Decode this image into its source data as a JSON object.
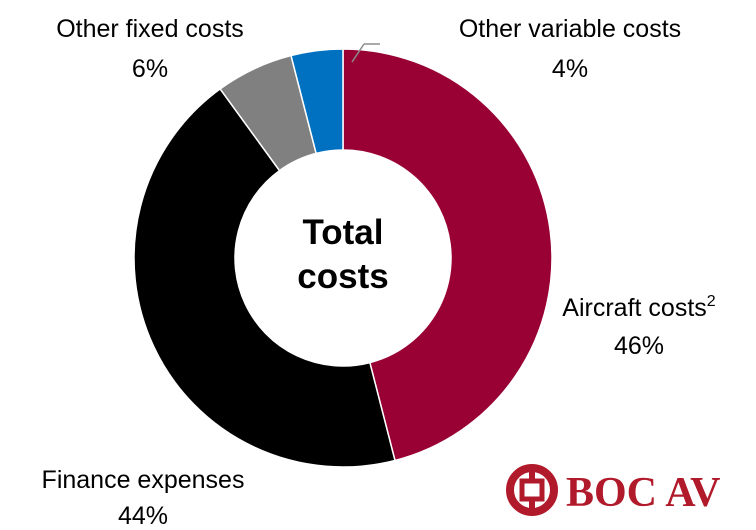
{
  "chart_data": {
    "type": "pie",
    "variant": "donut",
    "center_label": [
      "Total",
      "costs"
    ],
    "slices": [
      {
        "name": "Aircraft costs",
        "superscript": "2",
        "value": 46,
        "label": "46%",
        "color": "#990033"
      },
      {
        "name": "Finance expenses",
        "value": 44,
        "label": "44%",
        "color": "#000000"
      },
      {
        "name": "Other fixed costs",
        "value": 6,
        "label": "6%",
        "color": "#808080"
      },
      {
        "name": "Other variable costs",
        "value": 4,
        "label": "4%",
        "color": "#0070c0"
      }
    ],
    "start": "12 o'clock",
    "direction": "clockwise",
    "legend": "none"
  },
  "logo": {
    "text": "BOC AV",
    "color": "#b11a2b"
  }
}
